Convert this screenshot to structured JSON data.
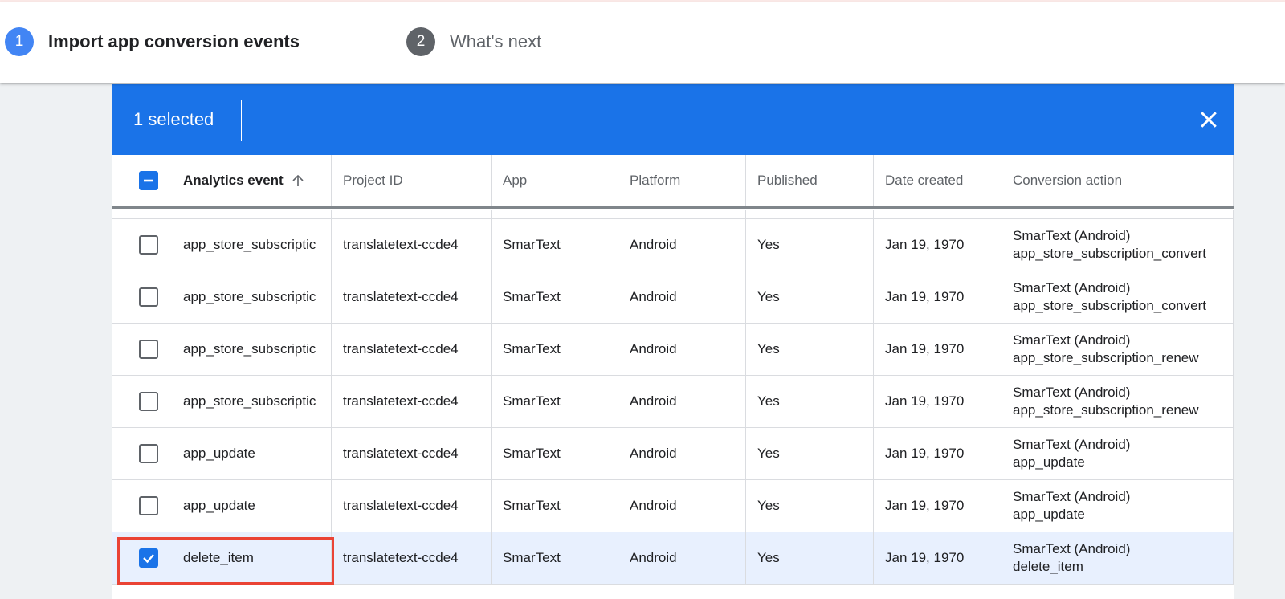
{
  "stepper": {
    "steps": [
      {
        "number": "1",
        "label": "Import app conversion events",
        "color": "#4285f4",
        "active": true
      },
      {
        "number": "2",
        "label": "What's next",
        "color": "#5f6368",
        "active": false
      }
    ]
  },
  "selection_bar": {
    "count_label": "1 selected",
    "close_icon": "close-icon",
    "color": "#1a73e8"
  },
  "table": {
    "columns": [
      "Analytics event",
      "Project ID",
      "App",
      "Platform",
      "Published",
      "Date created",
      "Conversion action"
    ],
    "sort": {
      "column": "Analytics event",
      "direction": "ascending",
      "icon": "arrow-up-icon"
    },
    "header_checkbox": "indeterminate",
    "rows": [
      {
        "checked": false,
        "event": "app_store_subscriptic",
        "project": "translatetext-ccde4",
        "app": "SmarText",
        "platform": "Android",
        "published": "Yes",
        "date": "Jan 19, 1970",
        "action_line1": "SmarText (Android)",
        "action_line2": "app_store_subscription_convert"
      },
      {
        "checked": false,
        "event": "app_store_subscriptic",
        "project": "translatetext-ccde4",
        "app": "SmarText",
        "platform": "Android",
        "published": "Yes",
        "date": "Jan 19, 1970",
        "action_line1": "SmarText (Android)",
        "action_line2": "app_store_subscription_convert"
      },
      {
        "checked": false,
        "event": "app_store_subscriptic",
        "project": "translatetext-ccde4",
        "app": "SmarText",
        "platform": "Android",
        "published": "Yes",
        "date": "Jan 19, 1970",
        "action_line1": "SmarText (Android)",
        "action_line2": "app_store_subscription_renew"
      },
      {
        "checked": false,
        "event": "app_store_subscriptic",
        "project": "translatetext-ccde4",
        "app": "SmarText",
        "platform": "Android",
        "published": "Yes",
        "date": "Jan 19, 1970",
        "action_line1": "SmarText (Android)",
        "action_line2": "app_store_subscription_renew"
      },
      {
        "checked": false,
        "event": "app_update",
        "project": "translatetext-ccde4",
        "app": "SmarText",
        "platform": "Android",
        "published": "Yes",
        "date": "Jan 19, 1970",
        "action_line1": "SmarText (Android)",
        "action_line2": "app_update"
      },
      {
        "checked": false,
        "event": "app_update",
        "project": "translatetext-ccde4",
        "app": "SmarText",
        "platform": "Android",
        "published": "Yes",
        "date": "Jan 19, 1970",
        "action_line1": "SmarText (Android)",
        "action_line2": "app_update"
      },
      {
        "checked": true,
        "event": "delete_item",
        "project": "translatetext-ccde4",
        "app": "SmarText",
        "platform": "Android",
        "published": "Yes",
        "date": "Jan 19, 1970",
        "action_line1": "SmarText (Android)",
        "action_line2": "delete_item"
      }
    ]
  },
  "highlight_color": "#ea4335"
}
